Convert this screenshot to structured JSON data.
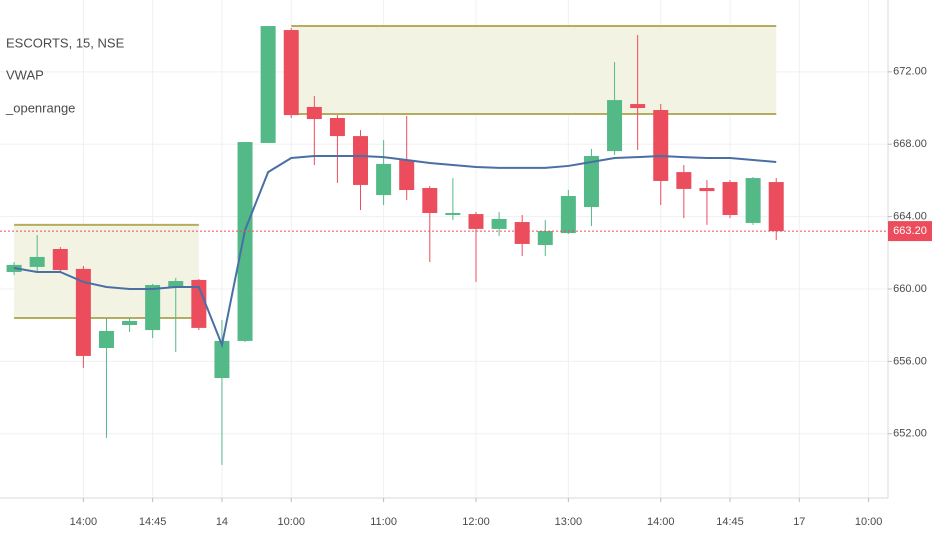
{
  "chart_data": {
    "type": "candlestick",
    "title": "ESCORTS, 15, NSE",
    "candles": {
      "up_color": "#53b987",
      "down_color": "#eb4d5c",
      "open": [
        660.94,
        661.22,
        662.21,
        661.11,
        656.74,
        658.01,
        657.73,
        660.06,
        660.5,
        655.08,
        657.13,
        668.07,
        674.31,
        670.06,
        669.45,
        668.45,
        665.19,
        667.13,
        665.58,
        664.09,
        664.14,
        663.32,
        663.7,
        662.43,
        663.09,
        664.53,
        667.62,
        670.22,
        669.89,
        666.46,
        665.58,
        665.91,
        663.65,
        665.91
      ],
      "high": [
        661.49,
        662.98,
        662.32,
        661.27,
        658.4,
        658.4,
        660.28,
        660.61,
        660.55,
        658.29,
        668.12,
        674.53,
        674.42,
        670.66,
        669.61,
        668.78,
        668.23,
        669.56,
        665.69,
        666.13,
        664.25,
        664.25,
        664.09,
        663.81,
        665.47,
        667.74,
        672.54,
        674.03,
        670.22,
        666.85,
        666.02,
        666.02,
        666.19,
        666.13
      ],
      "low": [
        660.77,
        660.94,
        660.94,
        655.64,
        651.77,
        657.62,
        657.29,
        656.52,
        657.73,
        650.28,
        657.07,
        668.07,
        669.45,
        666.85,
        665.86,
        664.36,
        664.64,
        664.92,
        661.49,
        663.81,
        660.39,
        662.93,
        661.82,
        661.82,
        663.04,
        663.48,
        667.4,
        667.68,
        664.64,
        663.92,
        663.54,
        663.92,
        663.54,
        662.71
      ],
      "close": [
        661.33,
        661.77,
        661.05,
        656.3,
        657.68,
        658.23,
        660.22,
        660.44,
        657.85,
        657.13,
        668.12,
        674.53,
        669.61,
        669.39,
        668.45,
        665.75,
        666.91,
        665.47,
        664.2,
        664.2,
        663.32,
        663.87,
        662.49,
        663.2,
        665.14,
        667.35,
        670.44,
        670.0,
        665.97,
        665.53,
        665.41,
        664.09,
        666.13,
        663.2
      ]
    },
    "overlays": [
      {
        "name": "VWAP",
        "type": "line",
        "color": "#4a6fa5",
        "values": [
          661.16,
          660.94,
          660.94,
          660.39,
          660.11,
          660.0,
          660.0,
          660.11,
          660.11,
          656.91,
          663.26,
          666.46,
          667.24,
          667.35,
          667.35,
          667.35,
          667.29,
          667.13,
          666.96,
          666.85,
          666.74,
          666.69,
          666.69,
          666.69,
          666.8,
          667.02,
          667.24,
          667.29,
          667.35,
          667.29,
          667.24,
          667.24,
          667.13,
          667.02
        ]
      },
      {
        "name": "_openrange",
        "type": "range",
        "color": "#b5ad5e",
        "fill": "#f3f3e4",
        "ranges": [
          {
            "start": 0,
            "end": 8,
            "high": 663.54,
            "low": 658.4
          },
          {
            "start": 12,
            "end": 33,
            "high": 674.53,
            "low": 669.67
          }
        ]
      }
    ],
    "price_label": {
      "value": 663.2,
      "label": "663.20",
      "color": "#eb4d5c"
    },
    "xlim": [
      -0.61,
      37.84
    ],
    "xticks": [
      {
        "value": 3,
        "label": "14:00"
      },
      {
        "value": 6,
        "label": "14:45"
      },
      {
        "value": 9,
        "label": "14"
      },
      {
        "value": 12,
        "label": "10:00"
      },
      {
        "value": 16,
        "label": "11:00"
      },
      {
        "value": 20,
        "label": "12:00"
      },
      {
        "value": 24,
        "label": "13:00"
      },
      {
        "value": 28,
        "label": "14:00"
      },
      {
        "value": 31,
        "label": "14:45"
      },
      {
        "value": 34,
        "label": "17"
      },
      {
        "value": 37,
        "label": "10:00"
      }
    ],
    "ylim": [
      648.45,
      675.97
    ],
    "yticks": [
      {
        "value": 652,
        "label": "652.00"
      },
      {
        "value": 656,
        "label": "656.00"
      },
      {
        "value": 660,
        "label": "660.00"
      },
      {
        "value": 664,
        "label": "664.00"
      },
      {
        "value": 668,
        "label": "668.00"
      },
      {
        "value": 672,
        "label": "672.00"
      }
    ],
    "grid": true
  }
}
